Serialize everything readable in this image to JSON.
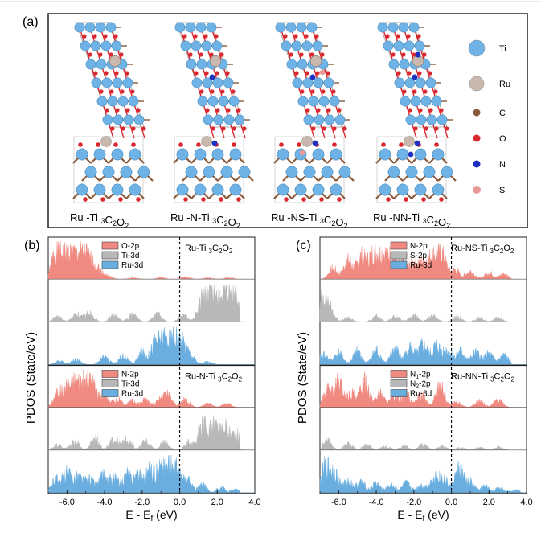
{
  "panel_labels": {
    "a": "(a)",
    "b": "(b)",
    "c": "(c)"
  },
  "structures": [
    {
      "label": "Ru -Ti ",
      "sub": "3",
      "mid": "C",
      "sub2": "2",
      "mid2": "O",
      "sub3": "2"
    },
    {
      "label": "Ru -N-Ti ",
      "sub": "3",
      "mid": "C",
      "sub2": "2",
      "mid2": "O",
      "sub3": "2"
    },
    {
      "label": "Ru -NS-Ti ",
      "sub": "3",
      "mid": "C",
      "sub2": "2",
      "mid2": "O",
      "sub3": "2"
    },
    {
      "label": "Ru -NN-Ti ",
      "sub": "3",
      "mid": "C",
      "sub2": "2",
      "mid2": "O",
      "sub3": "2"
    }
  ],
  "atom_legend": [
    {
      "symbol": "Ti",
      "color": "#6fb3e6"
    },
    {
      "symbol": "Ru",
      "color": "#c9b8ad"
    },
    {
      "symbol": "C",
      "color": "#8a5a3b"
    },
    {
      "symbol": "O",
      "color": "#d9282f"
    },
    {
      "symbol": "N",
      "color": "#1f2fbf"
    },
    {
      "symbol": "S",
      "color": "#e89a96"
    }
  ],
  "colors": {
    "red": "#f08a80",
    "gray": "#b8b8b8",
    "blue": "#6aaee0"
  },
  "pdos": {
    "ylabel": "PDOS (State/eV)",
    "xlabel_prefix": "E - E",
    "xlabel_sub": "f",
    "xlabel_suffix": " (eV)",
    "xticks": [
      "-6.0",
      "-4.0",
      "-2.0",
      "0.0",
      "2.0",
      "4.0"
    ]
  },
  "chart_data": [
    {
      "type": "area",
      "panel": "(b)",
      "xlim": [
        -7.0,
        4.0
      ],
      "groups": [
        {
          "title": "Ru-Ti ",
          "title_sub": "3",
          "title_c": "C",
          "title_sub2": "2",
          "title_o": "O",
          "title_sub3": "2",
          "series": [
            {
              "name": "O-2p",
              "color": "red",
              "peaks": [
                [
                  -6.6,
                  1.0
                ],
                [
                  -6.2,
                  0.9
                ],
                [
                  -5.9,
                  0.6
                ],
                [
                  -5.5,
                  0.95
                ],
                [
                  -5.1,
                  0.8
                ],
                [
                  -4.7,
                  0.5
                ],
                [
                  -4.3,
                  0.3
                ],
                [
                  -3.8,
                  0.1
                ],
                [
                  -2.5,
                  0.05
                ],
                [
                  -1.0,
                  0.06
                ],
                [
                  0.3,
                  0.08
                ],
                [
                  1.5,
                  0.05
                ],
                [
                  2.6,
                  0.06
                ]
              ]
            },
            {
              "name": "Ti-3d",
              "color": "gray",
              "peaks": [
                [
                  -6.5,
                  0.2
                ],
                [
                  -5.5,
                  0.3
                ],
                [
                  -4.8,
                  0.35
                ],
                [
                  -3.5,
                  0.25
                ],
                [
                  -2.5,
                  0.3
                ],
                [
                  -1.2,
                  0.3
                ],
                [
                  0.2,
                  0.25
                ],
                [
                  1.2,
                  0.85
                ],
                [
                  1.7,
                  0.9
                ],
                [
                  2.2,
                  1.0
                ],
                [
                  2.7,
                  0.95
                ],
                [
                  3.0,
                  0.6
                ]
              ]
            },
            {
              "name": "Ru-3d",
              "color": "blue",
              "peaks": [
                [
                  -6.4,
                  0.15
                ],
                [
                  -5.5,
                  0.2
                ],
                [
                  -4.0,
                  0.3
                ],
                [
                  -3.0,
                  0.35
                ],
                [
                  -2.0,
                  0.45
                ],
                [
                  -1.3,
                  0.8
                ],
                [
                  -0.9,
                  1.0
                ],
                [
                  -0.5,
                  0.9
                ],
                [
                  -0.2,
                  0.7
                ],
                [
                  0.2,
                  0.6
                ],
                [
                  0.6,
                  0.3
                ],
                [
                  1.5,
                  0.1
                ]
              ]
            }
          ]
        },
        {
          "title": "Ru-N-Ti ",
          "title_sub": "3",
          "title_c": "C",
          "title_sub2": "2",
          "title_o": "O",
          "title_sub3": "2",
          "series": [
            {
              "name": "N-2p",
              "color": "red",
              "peaks": [
                [
                  -6.5,
                  0.5
                ],
                [
                  -6.0,
                  0.7
                ],
                [
                  -5.5,
                  0.95
                ],
                [
                  -5.0,
                  1.0
                ],
                [
                  -4.6,
                  0.7
                ],
                [
                  -4.0,
                  0.45
                ],
                [
                  -3.3,
                  0.3
                ],
                [
                  -2.5,
                  0.25
                ],
                [
                  -1.8,
                  0.3
                ],
                [
                  -1.0,
                  0.3
                ],
                [
                  -0.6,
                  0.4
                ],
                [
                  0.3,
                  0.3
                ],
                [
                  1.5,
                  0.15
                ],
                [
                  2.5,
                  0.15
                ]
              ]
            },
            {
              "name": "Ti-3d",
              "color": "gray",
              "peaks": [
                [
                  -6.5,
                  0.2
                ],
                [
                  -5.6,
                  0.35
                ],
                [
                  -4.5,
                  0.45
                ],
                [
                  -3.5,
                  0.4
                ],
                [
                  -2.8,
                  0.4
                ],
                [
                  -1.8,
                  0.35
                ],
                [
                  -0.8,
                  0.3
                ],
                [
                  0.5,
                  0.3
                ],
                [
                  1.2,
                  0.95
                ],
                [
                  1.8,
                  1.0
                ],
                [
                  2.4,
                  0.9
                ],
                [
                  3.0,
                  0.6
                ]
              ]
            },
            {
              "name": "Ru-3d",
              "color": "blue",
              "peaks": [
                [
                  -6.6,
                  0.5
                ],
                [
                  -6.0,
                  0.7
                ],
                [
                  -5.4,
                  0.6
                ],
                [
                  -4.8,
                  0.5
                ],
                [
                  -4.1,
                  0.6
                ],
                [
                  -3.5,
                  0.55
                ],
                [
                  -2.8,
                  0.65
                ],
                [
                  -2.2,
                  0.7
                ],
                [
                  -1.6,
                  0.8
                ],
                [
                  -1.0,
                  0.95
                ],
                [
                  -0.6,
                  1.0
                ],
                [
                  -0.2,
                  0.85
                ],
                [
                  0.4,
                  0.5
                ],
                [
                  1.2,
                  0.3
                ],
                [
                  2.2,
                  0.2
                ],
                [
                  3.0,
                  0.12
                ]
              ]
            }
          ]
        }
      ]
    },
    {
      "type": "area",
      "panel": "(c)",
      "xlim": [
        -7.0,
        4.0
      ],
      "groups": [
        {
          "title": "Ru-NS-Ti ",
          "title_sub": "3",
          "title_c": "C",
          "title_sub2": "2",
          "title_o": "O",
          "title_sub3": "2",
          "series": [
            {
              "name": "N-2p",
              "color": "red",
              "peaks": [
                [
                  -6.3,
                  0.4
                ],
                [
                  -5.5,
                  0.7
                ],
                [
                  -4.8,
                  0.85
                ],
                [
                  -4.2,
                  0.9
                ],
                [
                  -3.7,
                  1.0
                ],
                [
                  -3.2,
                  0.8
                ],
                [
                  -2.6,
                  0.55
                ],
                [
                  -2.0,
                  0.6
                ],
                [
                  -1.5,
                  0.6
                ],
                [
                  -1.0,
                  0.8
                ],
                [
                  -0.5,
                  0.9
                ],
                [
                  0.2,
                  0.35
                ],
                [
                  1.0,
                  0.3
                ],
                [
                  2.0,
                  0.25
                ],
                [
                  2.8,
                  0.2
                ]
              ]
            },
            {
              "name": "S-2p",
              "color": "gray",
              "peaks": [
                [
                  -6.8,
                  1.0
                ],
                [
                  -6.4,
                  0.3
                ],
                [
                  -5.5,
                  0.15
                ],
                [
                  -4.0,
                  0.2
                ],
                [
                  -3.0,
                  0.2
                ],
                [
                  -2.0,
                  0.25
                ],
                [
                  -1.0,
                  0.25
                ],
                [
                  0.3,
                  0.2
                ],
                [
                  1.5,
                  0.15
                ],
                [
                  2.5,
                  0.15
                ]
              ]
            },
            {
              "name": "Ru-3d",
              "color": "blue",
              "peaks": [
                [
                  -6.8,
                  0.4
                ],
                [
                  -6.0,
                  0.45
                ],
                [
                  -5.0,
                  0.5
                ],
                [
                  -4.0,
                  0.55
                ],
                [
                  -3.0,
                  0.6
                ],
                [
                  -2.2,
                  0.65
                ],
                [
                  -1.5,
                  0.75
                ],
                [
                  -0.8,
                  0.7
                ],
                [
                  -0.2,
                  0.55
                ],
                [
                  0.5,
                  0.5
                ],
                [
                  1.3,
                  0.45
                ],
                [
                  2.0,
                  0.4
                ],
                [
                  2.8,
                  0.35
                ]
              ]
            }
          ]
        },
        {
          "title": "Ru-NN-Ti ",
          "title_sub": "3",
          "title_c": "C",
          "title_sub2": "2",
          "title_o": "O",
          "title_sub3": "2",
          "series": [
            {
              "name": "N1-2p",
              "color": "red",
              "peaks": [
                [
                  -6.6,
                  0.6
                ],
                [
                  -6.0,
                  0.9
                ],
                [
                  -5.3,
                  0.5
                ],
                [
                  -4.6,
                  1.0
                ],
                [
                  -3.8,
                  0.5
                ],
                [
                  -3.0,
                  0.45
                ],
                [
                  -2.4,
                  0.5
                ],
                [
                  -1.6,
                  0.45
                ],
                [
                  -0.6,
                  0.85
                ],
                [
                  0.3,
                  0.2
                ],
                [
                  1.5,
                  0.25
                ],
                [
                  2.5,
                  0.3
                ]
              ]
            },
            {
              "name": "N2-2p",
              "color": "gray",
              "peaks": [
                [
                  -6.6,
                  0.35
                ],
                [
                  -5.5,
                  0.25
                ],
                [
                  -4.5,
                  0.2
                ],
                [
                  -3.5,
                  0.15
                ],
                [
                  -2.5,
                  0.15
                ],
                [
                  -1.5,
                  0.2
                ],
                [
                  -0.5,
                  0.15
                ],
                [
                  0.5,
                  0.1
                ],
                [
                  1.5,
                  0.1
                ],
                [
                  2.5,
                  0.12
                ]
              ]
            },
            {
              "name": "Ru-3d",
              "color": "blue",
              "peaks": [
                [
                  -6.7,
                  1.0
                ],
                [
                  -6.2,
                  0.7
                ],
                [
                  -5.5,
                  0.45
                ],
                [
                  -4.8,
                  0.4
                ],
                [
                  -4.0,
                  0.35
                ],
                [
                  -3.2,
                  0.3
                ],
                [
                  -2.4,
                  0.35
                ],
                [
                  -1.6,
                  0.3
                ],
                [
                  -0.9,
                  0.6
                ],
                [
                  -0.4,
                  0.5
                ],
                [
                  0.4,
                  0.9
                ],
                [
                  1.0,
                  0.4
                ],
                [
                  1.8,
                  0.25
                ],
                [
                  2.6,
                  0.2
                ],
                [
                  3.4,
                  0.12
                ]
              ]
            }
          ]
        }
      ]
    }
  ]
}
